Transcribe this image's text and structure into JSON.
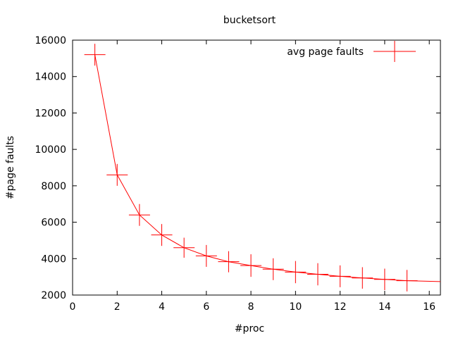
{
  "chart_data": {
    "type": "line",
    "title": "bucketsort",
    "xlabel": "#proc",
    "ylabel": "#page faults",
    "xlim": [
      0,
      16.5
    ],
    "ylim": [
      2000,
      16000
    ],
    "x_ticks": [
      0,
      2,
      4,
      6,
      8,
      10,
      12,
      14,
      16
    ],
    "y_ticks": [
      2000,
      4000,
      6000,
      8000,
      10000,
      12000,
      14000,
      16000
    ],
    "grid": false,
    "legend_position": "top-right",
    "series": [
      {
        "name": "avg page faults",
        "color": "#ff0000",
        "x": [
          1,
          2,
          3,
          4,
          5,
          6,
          7,
          8,
          9,
          10,
          11,
          12,
          13,
          14,
          15,
          16.5
        ],
        "y": [
          15200,
          8600,
          6400,
          5300,
          4600,
          4150,
          3830,
          3620,
          3420,
          3260,
          3140,
          3030,
          2940,
          2860,
          2790,
          2740
        ],
        "marker_x": [
          1,
          2,
          3,
          4,
          5,
          6,
          7,
          8,
          9,
          10,
          11,
          12,
          13,
          14,
          15
        ],
        "marker_y": [
          15200,
          8600,
          6400,
          5300,
          4600,
          4150,
          3830,
          3620,
          3420,
          3260,
          3140,
          3030,
          2940,
          2860,
          2790
        ],
        "error_low": [
          14600,
          8000,
          5800,
          4700,
          4050,
          3550,
          3250,
          3000,
          2820,
          2650,
          2530,
          2430,
          2350,
          2270,
          2200
        ],
        "error_high": [
          15800,
          9200,
          7000,
          5900,
          5150,
          4750,
          4410,
          4240,
          4020,
          3870,
          3750,
          3630,
          3530,
          3450,
          3380
        ]
      }
    ]
  }
}
